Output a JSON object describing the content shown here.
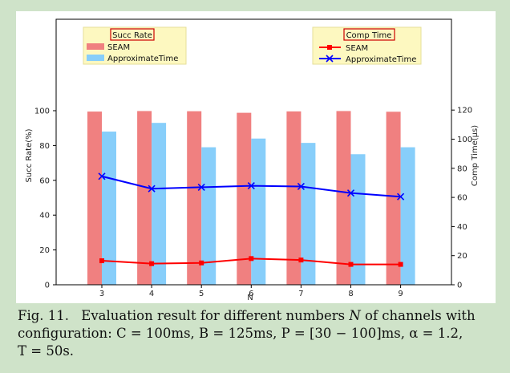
{
  "chart_data": {
    "type": "bar",
    "xlabel": "N",
    "categories": [
      "3",
      "4",
      "5",
      "6",
      "7",
      "8",
      "9"
    ],
    "left_axis": {
      "label": "Succ Rate(%)",
      "ylim": [
        0,
        100
      ],
      "ticks": [
        "0",
        "20",
        "40",
        "60",
        "80",
        "100"
      ]
    },
    "right_axis": {
      "label": "Comp Time(μs)",
      "ylim": [
        0,
        120
      ],
      "ticks": [
        "0",
        "20",
        "40",
        "60",
        "80",
        "100",
        "120"
      ]
    },
    "bar_legend": {
      "title": "Succ Rate",
      "placement": "top-left"
    },
    "line_legend": {
      "title": "Comp Time",
      "placement": "top-right"
    },
    "bar_series": [
      {
        "name": "SEAM",
        "color": "#f08080",
        "values": [
          99.5,
          99.8,
          99.7,
          98.8,
          99.6,
          99.8,
          99.4
        ]
      },
      {
        "name": "ApproximateTime",
        "color": "#87cefa",
        "values": [
          88,
          93,
          79,
          84,
          81.5,
          75,
          79
        ]
      }
    ],
    "line_series": [
      {
        "name": "SEAM",
        "color": "#ff0000",
        "marker": "square",
        "values": [
          16.5,
          14.5,
          15,
          18,
          17,
          14,
          14
        ]
      },
      {
        "name": "ApproximateTime",
        "color": "#0000ff",
        "marker": "x",
        "values": [
          74.5,
          66,
          67,
          68,
          67.5,
          63,
          60.5
        ]
      }
    ],
    "grid": false
  },
  "caption": {
    "label": "Fig. 11.",
    "line1": "Evaluation result for different numbers",
    "var_n": "N",
    "line1_end": "of channels with",
    "line2": "configuration: C = 100ms, B = 125ms, P = [30 − 100]ms, α = 1.2,",
    "line3": "T = 50s."
  }
}
